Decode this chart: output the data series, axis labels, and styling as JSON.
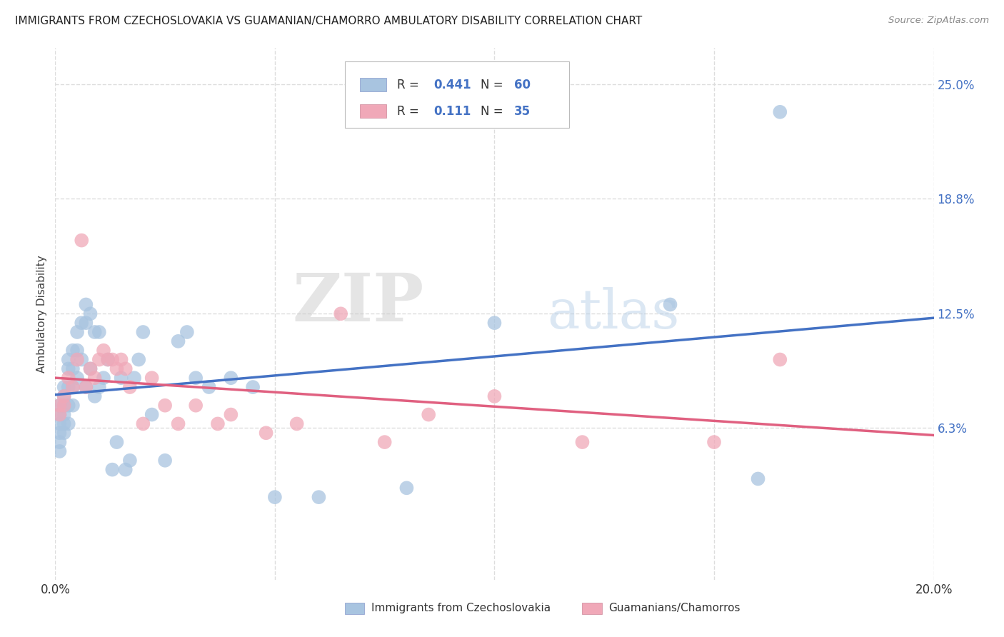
{
  "title": "IMMIGRANTS FROM CZECHOSLOVAKIA VS GUAMANIAN/CHAMORRO AMBULATORY DISABILITY CORRELATION CHART",
  "source": "Source: ZipAtlas.com",
  "ylabel": "Ambulatory Disability",
  "yticks": [
    "25.0%",
    "18.8%",
    "12.5%",
    "6.3%"
  ],
  "ytick_vals": [
    0.25,
    0.188,
    0.125,
    0.063
  ],
  "xlim": [
    0.0,
    0.2
  ],
  "ylim": [
    -0.02,
    0.27
  ],
  "legend_label1": "Immigrants from Czechoslovakia",
  "legend_label2": "Guamanians/Chamorros",
  "R1": "0.441",
  "N1": "60",
  "R2": "0.111",
  "N2": "35",
  "color_blue": "#a8c4e0",
  "color_pink": "#f0a8b8",
  "line_blue": "#4472c4",
  "line_pink": "#e06080",
  "blue_x": [
    0.001,
    0.001,
    0.001,
    0.001,
    0.001,
    0.001,
    0.002,
    0.002,
    0.002,
    0.002,
    0.002,
    0.002,
    0.003,
    0.003,
    0.003,
    0.003,
    0.003,
    0.004,
    0.004,
    0.004,
    0.004,
    0.005,
    0.005,
    0.005,
    0.006,
    0.006,
    0.007,
    0.007,
    0.007,
    0.008,
    0.008,
    0.009,
    0.009,
    0.01,
    0.01,
    0.011,
    0.012,
    0.013,
    0.014,
    0.015,
    0.016,
    0.017,
    0.018,
    0.019,
    0.02,
    0.022,
    0.025,
    0.028,
    0.03,
    0.032,
    0.035,
    0.04,
    0.045,
    0.05,
    0.06,
    0.08,
    0.1,
    0.14,
    0.16,
    0.165
  ],
  "blue_y": [
    0.075,
    0.07,
    0.065,
    0.06,
    0.055,
    0.05,
    0.085,
    0.08,
    0.075,
    0.07,
    0.065,
    0.06,
    0.1,
    0.095,
    0.085,
    0.075,
    0.065,
    0.105,
    0.095,
    0.085,
    0.075,
    0.115,
    0.105,
    0.09,
    0.12,
    0.1,
    0.13,
    0.12,
    0.085,
    0.125,
    0.095,
    0.115,
    0.08,
    0.115,
    0.085,
    0.09,
    0.1,
    0.04,
    0.055,
    0.09,
    0.04,
    0.045,
    0.09,
    0.1,
    0.115,
    0.07,
    0.045,
    0.11,
    0.115,
    0.09,
    0.085,
    0.09,
    0.085,
    0.025,
    0.025,
    0.03,
    0.12,
    0.13,
    0.035,
    0.235
  ],
  "pink_x": [
    0.001,
    0.001,
    0.002,
    0.002,
    0.003,
    0.004,
    0.005,
    0.006,
    0.007,
    0.008,
    0.009,
    0.01,
    0.011,
    0.012,
    0.013,
    0.014,
    0.015,
    0.016,
    0.017,
    0.02,
    0.022,
    0.025,
    0.028,
    0.032,
    0.037,
    0.04,
    0.048,
    0.055,
    0.065,
    0.075,
    0.085,
    0.1,
    0.12,
    0.15,
    0.165
  ],
  "pink_y": [
    0.075,
    0.07,
    0.08,
    0.075,
    0.09,
    0.085,
    0.1,
    0.165,
    0.085,
    0.095,
    0.09,
    0.1,
    0.105,
    0.1,
    0.1,
    0.095,
    0.1,
    0.095,
    0.085,
    0.065,
    0.09,
    0.075,
    0.065,
    0.075,
    0.065,
    0.07,
    0.06,
    0.065,
    0.125,
    0.055,
    0.07,
    0.08,
    0.055,
    0.055,
    0.1
  ],
  "watermark_zip": "ZIP",
  "watermark_atlas": "atlas",
  "background_color": "#ffffff",
  "grid_color": "#dddddd"
}
